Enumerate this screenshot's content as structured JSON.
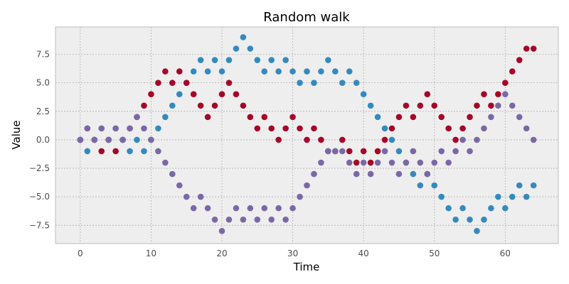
{
  "chart_data": {
    "type": "scatter",
    "title": "Random walk",
    "xlabel": "Time",
    "ylabel": "Value",
    "xlim": [
      -3.5,
      67.5
    ],
    "ylim": [
      -9.1,
      9.9
    ],
    "xticks": [
      0,
      10,
      20,
      30,
      40,
      50,
      60
    ],
    "xtick_labels": [
      "0",
      "10",
      "20",
      "30",
      "40",
      "50",
      "60"
    ],
    "yticks": [
      -7.5,
      -5.0,
      -2.5,
      0.0,
      2.5,
      5.0,
      7.5
    ],
    "ytick_labels": [
      "−7.5",
      "−5.0",
      "−2.5",
      "0.0",
      "2.5",
      "5.0",
      "7.5"
    ],
    "grid": true,
    "x": [
      0,
      1,
      2,
      3,
      4,
      5,
      6,
      7,
      8,
      9,
      10,
      11,
      12,
      13,
      14,
      15,
      16,
      17,
      18,
      19,
      20,
      21,
      22,
      23,
      24,
      25,
      26,
      27,
      28,
      29,
      30,
      31,
      32,
      33,
      34,
      35,
      36,
      37,
      38,
      39,
      40,
      41,
      42,
      43,
      44,
      45,
      46,
      47,
      48,
      49,
      50,
      51,
      52,
      53,
      54,
      55,
      56,
      57,
      58,
      59,
      60,
      61,
      62,
      63,
      64
    ],
    "series": [
      {
        "color": "#348abd",
        "values": [
          0,
          -1,
          0,
          1,
          0,
          1,
          0,
          -1,
          0,
          -1,
          0,
          1,
          2,
          3,
          4,
          5,
          6,
          7,
          6,
          7,
          6,
          7,
          8,
          9,
          8,
          7,
          6,
          7,
          6,
          7,
          6,
          5,
          6,
          5,
          6,
          7,
          6,
          5,
          6,
          5,
          4,
          3,
          2,
          1,
          0,
          -1,
          -2,
          -3,
          -4,
          -3,
          -4,
          -5,
          -6,
          -7,
          -6,
          -7,
          -8,
          -7,
          -6,
          -5,
          -6,
          -5,
          -4,
          -5,
          -4
        ]
      },
      {
        "color": "#a60628",
        "values": [
          0,
          1,
          0,
          -1,
          0,
          -1,
          0,
          1,
          2,
          3,
          4,
          5,
          6,
          5,
          6,
          5,
          4,
          3,
          2,
          3,
          4,
          5,
          4,
          3,
          2,
          1,
          2,
          1,
          0,
          1,
          2,
          1,
          0,
          1,
          0,
          -1,
          -1,
          0,
          -1,
          -2,
          -1,
          -2,
          -1,
          0,
          1,
          2,
          3,
          2,
          3,
          4,
          3,
          2,
          1,
          0,
          1,
          2,
          3,
          4,
          3,
          4,
          5,
          6,
          7,
          8,
          8
        ]
      },
      {
        "color": "#7a68a6",
        "values": [
          0,
          1,
          0,
          1,
          0,
          1,
          0,
          1,
          2,
          1,
          0,
          -1,
          -2,
          -3,
          -4,
          -5,
          -6,
          -5,
          -6,
          -7,
          -8,
          -7,
          -6,
          -7,
          -6,
          -7,
          -6,
          -7,
          -6,
          -7,
          -6,
          -5,
          -4,
          -3,
          -2,
          -1,
          -1,
          -1,
          -2,
          -3,
          -2,
          -3,
          -2,
          -1,
          -2,
          -3,
          -2,
          -1,
          -2,
          -3,
          -2,
          -1,
          -2,
          -1,
          0,
          -1,
          0,
          1,
          2,
          3,
          4,
          3,
          2,
          1,
          0
        ]
      }
    ]
  },
  "style": {
    "axes_background": "#eeeeee",
    "grid_color": "#b2b2b2",
    "spine_color": "#bcbcbc"
  }
}
